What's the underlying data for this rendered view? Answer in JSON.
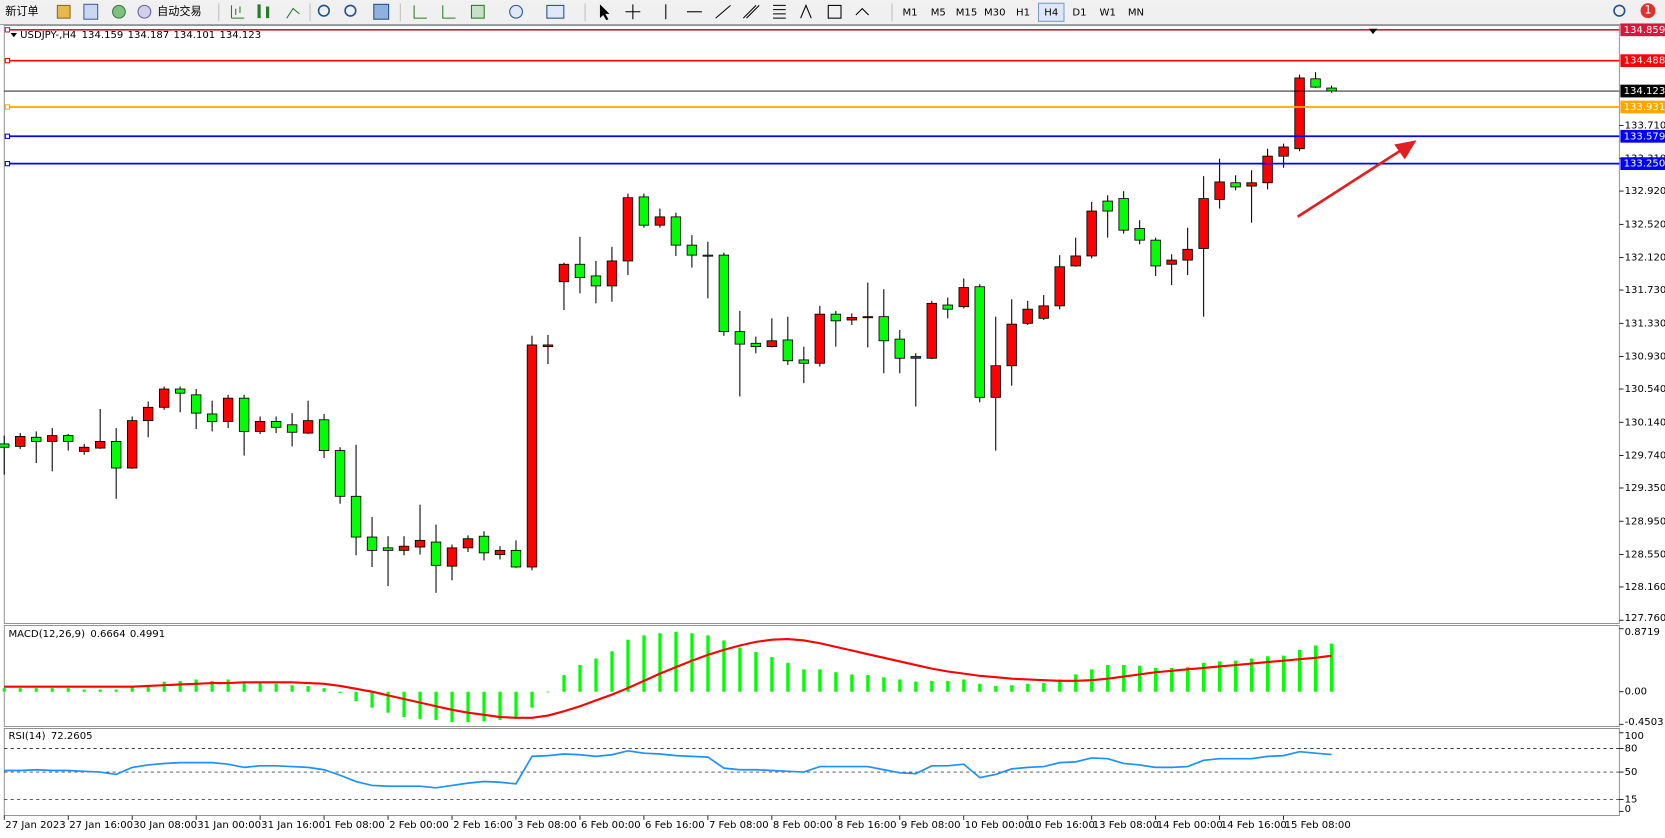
{
  "toolbar": {
    "new_order": "新订单",
    "auto_trading": "自动交易",
    "timeframes": [
      "M1",
      "M5",
      "M15",
      "M30",
      "H1",
      "H4",
      "D1",
      "W1",
      "MN"
    ],
    "active_timeframe": "H4",
    "notifications": 1
  },
  "chart_data": [
    {
      "type": "candlestick",
      "title": "USDJPY-,H4",
      "categories": [
        "27 Jan 2023",
        null,
        null,
        null,
        "27 Jan 16:00",
        null,
        null,
        null,
        "30 Jan 08:00",
        null,
        null,
        null,
        "31 Jan 00:00",
        null,
        null,
        null,
        "31 Jan 16:00",
        null,
        null,
        null,
        "1 Feb 08:00",
        null,
        null,
        null,
        "2 Feb 00:00",
        null,
        null,
        null,
        "2 Feb 16:00",
        null,
        null,
        null,
        "3 Feb 08:00",
        null,
        null,
        null,
        "6 Feb 00:00",
        null,
        null,
        null,
        "6 Feb 16:00",
        null,
        null,
        null,
        "7 Feb 08:00",
        null,
        null,
        null,
        "8 Feb 00:00",
        null,
        null,
        null,
        "8 Feb 16:00",
        null,
        null,
        null,
        "9 Feb 08:00",
        null,
        null,
        null,
        "10 Feb 00:00",
        null,
        null,
        null,
        "10 Feb 16:00",
        null,
        null,
        null,
        "13 Feb 08:00",
        null,
        null,
        null,
        "14 Feb 00:00",
        null,
        null,
        null,
        "14 Feb 16:00",
        null,
        null,
        null,
        "15 Feb 08:00",
        null,
        null,
        null
      ],
      "open": [
        129.88,
        129.85,
        129.96,
        129.91,
        129.98,
        129.79,
        129.83,
        129.91,
        129.59,
        130.16,
        130.32,
        130.54,
        130.47,
        130.24,
        130.15,
        130.43,
        130.03,
        130.15,
        130.11,
        130.01,
        130.17,
        129.8,
        129.25,
        128.76,
        128.63,
        128.6,
        128.64,
        128.7,
        128.41,
        128.63,
        128.77,
        128.55,
        128.6,
        128.4,
        131.05,
        131.83,
        132.04,
        131.9,
        131.78,
        132.08,
        132.85,
        132.51,
        132.61,
        132.27,
        132.15,
        132.15,
        131.23,
        131.09,
        131.05,
        131.13,
        130.89,
        130.85,
        131.44,
        131.37,
        131.4,
        131.41,
        131.14,
        130.91,
        130.91,
        131.55,
        131.53,
        131.77,
        130.44,
        130.82,
        131.33,
        131.39,
        131.54,
        132.02,
        132.14,
        132.8,
        132.83,
        132.47,
        132.33,
        132.04,
        132.09,
        132.23,
        132.82,
        133.02,
        132.98,
        133.02,
        133.34,
        133.43,
        134.27,
        134.159
      ],
      "high": [
        129.98,
        130.01,
        130.03,
        130.07,
        130.0,
        129.88,
        130.3,
        130.07,
        130.21,
        130.39,
        130.57,
        130.57,
        130.54,
        130.4,
        130.47,
        130.47,
        130.21,
        130.21,
        130.25,
        130.4,
        130.24,
        129.84,
        129.87,
        129.0,
        128.77,
        128.77,
        129.15,
        128.91,
        128.67,
        128.78,
        128.83,
        128.65,
        128.72,
        131.18,
        131.19,
        132.06,
        132.37,
        132.08,
        132.25,
        132.89,
        132.89,
        132.71,
        132.66,
        132.39,
        132.31,
        132.18,
        131.48,
        131.17,
        131.39,
        131.41,
        131.05,
        131.54,
        131.48,
        131.45,
        131.82,
        131.74,
        131.25,
        130.97,
        131.6,
        131.64,
        131.87,
        131.8,
        131.41,
        131.62,
        131.6,
        131.67,
        132.15,
        132.36,
        132.79,
        132.87,
        132.92,
        132.57,
        132.36,
        132.16,
        132.48,
        133.1,
        133.31,
        133.11,
        133.17,
        133.43,
        133.49,
        134.32,
        134.35,
        134.187
      ],
      "low": [
        129.51,
        129.82,
        129.65,
        129.55,
        129.8,
        129.75,
        129.82,
        129.22,
        129.58,
        129.96,
        130.29,
        130.26,
        130.06,
        130.03,
        130.07,
        129.74,
        130.0,
        130.01,
        129.85,
        130.0,
        129.71,
        129.16,
        128.54,
        128.4,
        128.17,
        128.54,
        128.55,
        128.09,
        128.24,
        128.58,
        128.48,
        128.49,
        128.39,
        128.36,
        130.84,
        131.49,
        131.69,
        131.57,
        131.59,
        131.91,
        132.48,
        132.48,
        132.14,
        132.0,
        131.63,
        131.18,
        130.45,
        130.97,
        131.04,
        130.83,
        130.61,
        130.81,
        131.05,
        131.31,
        131.04,
        130.73,
        130.73,
        130.33,
        130.9,
        131.39,
        131.51,
        130.38,
        129.8,
        130.58,
        131.31,
        131.37,
        131.5,
        132.01,
        132.11,
        132.36,
        132.41,
        132.28,
        131.9,
        131.79,
        131.91,
        131.41,
        132.71,
        132.93,
        132.54,
        132.94,
        133.2,
        133.4,
        134.16,
        134.101
      ],
      "close": [
        129.84,
        129.97,
        129.91,
        129.98,
        129.91,
        129.84,
        129.91,
        129.59,
        130.16,
        130.32,
        130.54,
        130.49,
        130.25,
        130.15,
        130.43,
        130.03,
        130.15,
        130.08,
        130.02,
        130.16,
        129.8,
        129.25,
        128.76,
        128.6,
        128.6,
        128.65,
        128.72,
        128.42,
        128.63,
        128.74,
        128.57,
        128.6,
        128.4,
        131.07,
        131.07,
        132.04,
        131.88,
        131.78,
        132.08,
        132.84,
        132.51,
        132.61,
        132.27,
        132.15,
        132.14,
        131.23,
        131.08,
        131.05,
        131.12,
        130.88,
        130.85,
        131.44,
        131.36,
        131.4,
        131.41,
        131.12,
        130.91,
        130.93,
        131.57,
        131.5,
        131.76,
        130.44,
        130.82,
        131.32,
        131.5,
        131.54,
        132.01,
        132.14,
        132.68,
        132.68,
        132.45,
        132.33,
        132.02,
        132.09,
        132.22,
        132.83,
        133.03,
        132.97,
        133.02,
        133.34,
        133.45,
        134.28,
        134.17,
        134.123
      ],
      "up_color": "#ff0000",
      "down_color": "#00ff00",
      "bid_line_color": "#000000",
      "ylim": [
        127.76,
        134.859
      ],
      "yticks": [
        {
          "value": 133.71,
          "label": "133.710"
        },
        {
          "value": 133.31,
          "label": "133.310"
        },
        {
          "value": 132.92,
          "label": "132.920"
        },
        {
          "value": 132.52,
          "label": "132.520"
        },
        {
          "value": 132.12,
          "label": "132.120"
        },
        {
          "value": 131.73,
          "label": "131.730"
        },
        {
          "value": 131.33,
          "label": "131.330"
        },
        {
          "value": 130.93,
          "label": "130.930"
        },
        {
          "value": 130.54,
          "label": "130.540"
        },
        {
          "value": 130.14,
          "label": "130.140"
        },
        {
          "value": 129.74,
          "label": "129.740"
        },
        {
          "value": 129.35,
          "label": "129.350"
        },
        {
          "value": 128.95,
          "label": "128.950"
        },
        {
          "value": 128.55,
          "label": "128.550"
        },
        {
          "value": 128.16,
          "label": "128.160"
        },
        {
          "value": 127.76,
          "label": "127.760"
        }
      ],
      "hlines": [
        {
          "value": 134.859,
          "color": "#dc143c"
        },
        {
          "value": 134.488,
          "color": "#ff0000"
        },
        {
          "value": 133.931,
          "color": "#ffa500"
        },
        {
          "value": 133.579,
          "color": "#0000ff"
        },
        {
          "value": 133.25,
          "label": "133.250",
          "color": "#0000ff"
        }
      ]
    },
    {
      "type": "macd",
      "title": "MACD(12,26,9)",
      "histogram": [
        0.05,
        0.05,
        0.05,
        0.05,
        0.05,
        0.03,
        0.03,
        0.03,
        0.06,
        0.09,
        0.14,
        0.15,
        0.17,
        0.15,
        0.17,
        0.14,
        0.12,
        0.11,
        0.09,
        0.08,
        0.05,
        -0.02,
        -0.13,
        -0.22,
        -0.29,
        -0.35,
        -0.38,
        -0.39,
        -0.42,
        -0.42,
        -0.41,
        -0.39,
        -0.36,
        -0.22,
        -0.01,
        0.23,
        0.37,
        0.46,
        0.56,
        0.72,
        0.78,
        0.81,
        0.83,
        0.81,
        0.78,
        0.71,
        0.61,
        0.55,
        0.48,
        0.4,
        0.31,
        0.31,
        0.27,
        0.24,
        0.23,
        0.2,
        0.17,
        0.14,
        0.15,
        0.15,
        0.17,
        0.11,
        0.08,
        0.09,
        0.11,
        0.12,
        0.17,
        0.24,
        0.31,
        0.37,
        0.37,
        0.36,
        0.33,
        0.33,
        0.34,
        0.4,
        0.42,
        0.43,
        0.46,
        0.49,
        0.5,
        0.58,
        0.64,
        0.6664
      ],
      "signal": [
        0.07,
        0.07,
        0.07,
        0.07,
        0.07,
        0.07,
        0.07,
        0.07,
        0.07,
        0.08,
        0.09,
        0.1,
        0.11,
        0.12,
        0.12,
        0.13,
        0.13,
        0.13,
        0.13,
        0.12,
        0.11,
        0.08,
        0.04,
        0.0,
        -0.05,
        -0.1,
        -0.15,
        -0.2,
        -0.25,
        -0.29,
        -0.32,
        -0.35,
        -0.36,
        -0.36,
        -0.33,
        -0.27,
        -0.2,
        -0.12,
        -0.04,
        0.05,
        0.15,
        0.25,
        0.34,
        0.43,
        0.51,
        0.58,
        0.64,
        0.69,
        0.72,
        0.73,
        0.71,
        0.67,
        0.62,
        0.57,
        0.52,
        0.47,
        0.42,
        0.37,
        0.32,
        0.28,
        0.25,
        0.22,
        0.2,
        0.18,
        0.17,
        0.16,
        0.15,
        0.15,
        0.16,
        0.18,
        0.21,
        0.24,
        0.27,
        0.29,
        0.31,
        0.33,
        0.35,
        0.37,
        0.39,
        0.41,
        0.43,
        0.45,
        0.47,
        0.4991
      ],
      "histogram_color": "#00ff00",
      "signal_color": "#ff0000",
      "ylim": [
        -0.4503,
        0.8719
      ],
      "yticks": [
        0.8719,
        {
          "value": 0,
          "label": "0.00"
        },
        -0.4503
      ]
    },
    {
      "type": "line",
      "title": "RSI(14)",
      "values": [
        52,
        52,
        53,
        52,
        52,
        51,
        50,
        47,
        56,
        59,
        61,
        62,
        62,
        62,
        60,
        56,
        58,
        58,
        57,
        56,
        53,
        46,
        38,
        33,
        32,
        32,
        32,
        30,
        33,
        36,
        38,
        37,
        35,
        70,
        71,
        73,
        72,
        70,
        72,
        77,
        74,
        73,
        71,
        70,
        69,
        55,
        53,
        53,
        52,
        51,
        50,
        57,
        57,
        57,
        57,
        53,
        49,
        48,
        58,
        58,
        60,
        43,
        47,
        54,
        56,
        57,
        62,
        63,
        68,
        67,
        61,
        59,
        56,
        56,
        57,
        65,
        67,
        67,
        67,
        70,
        71,
        76,
        74,
        72.2605
      ],
      "color": "#1e90ff",
      "ylim": [
        0,
        100
      ],
      "yticks": [
        100,
        80,
        50,
        15,
        0
      ]
    }
  ]
}
